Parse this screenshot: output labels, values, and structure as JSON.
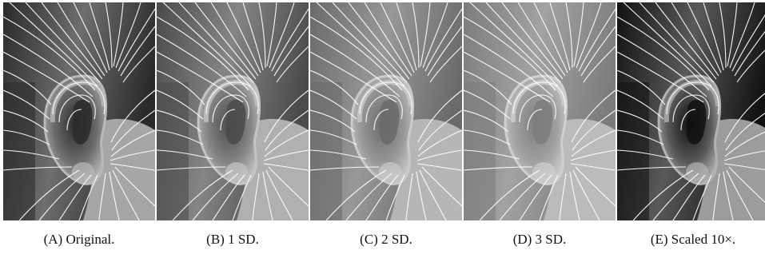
{
  "figure": {
    "panels": [
      {
        "caption": "(A) Original.",
        "tone": "original"
      },
      {
        "caption": "(B) 1 SD.",
        "tone": "sd1"
      },
      {
        "caption": "(C) 2 SD.",
        "tone": "sd2"
      },
      {
        "caption": "(D) 3 SD.",
        "tone": "sd3"
      },
      {
        "caption": "(E) Scaled 10×.",
        "tone": "scaled"
      }
    ]
  },
  "colors": {
    "field_lines": "#ffffff",
    "original": {
      "dark": "#2a2a2a",
      "mid": "#6e6e6e",
      "light": "#b9b9b9",
      "skin": "#a6a6a6"
    },
    "sd1": {
      "dark": "#4a4a4a",
      "mid": "#858585",
      "light": "#c4c4c4",
      "skin": "#b0b0b0"
    },
    "sd2": {
      "dark": "#6a6a6a",
      "mid": "#989898",
      "light": "#cacaca",
      "skin": "#b6b6b6"
    },
    "sd3": {
      "dark": "#7c7c7c",
      "mid": "#a2a2a2",
      "light": "#cfcfcf",
      "skin": "#bbbbbb"
    },
    "scaled": {
      "dark": "#111111",
      "mid": "#5a5a5a",
      "light": "#b3b3b3",
      "skin": "#9c9c9c"
    }
  }
}
